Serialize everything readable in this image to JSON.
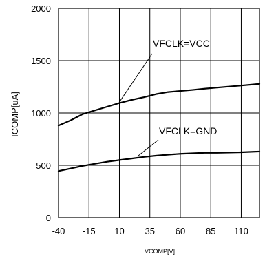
{
  "chart_data": {
    "type": "line",
    "title": "",
    "xlabel": "VCOMP[V]",
    "ylabel": "ICOMP[uA]",
    "xlim": [
      -40,
      125
    ],
    "ylim": [
      0,
      2000
    ],
    "x_ticks": [
      -40,
      -15,
      10,
      35,
      60,
      85,
      110
    ],
    "y_ticks": [
      0,
      500,
      1000,
      1500,
      2000
    ],
    "grid": true,
    "series": [
      {
        "name": "VFCLK=VCC",
        "x": [
          -40,
          -30,
          -20,
          -10,
          0,
          10,
          20,
          30,
          40,
          50,
          60,
          70,
          80,
          90,
          100,
          110,
          120,
          125
        ],
        "y": [
          880,
          930,
          990,
          1025,
          1060,
          1095,
          1125,
          1150,
          1180,
          1200,
          1210,
          1220,
          1232,
          1242,
          1252,
          1262,
          1272,
          1278
        ]
      },
      {
        "name": "VFCLK=GND",
        "x": [
          -40,
          -30,
          -20,
          -10,
          0,
          10,
          20,
          30,
          40,
          50,
          60,
          70,
          80,
          90,
          100,
          110,
          120,
          125
        ],
        "y": [
          445,
          470,
          495,
          515,
          535,
          550,
          565,
          580,
          592,
          602,
          610,
          615,
          620,
          620,
          622,
          625,
          630,
          632
        ]
      }
    ],
    "annotations": [
      {
        "text": "VFCLK=VCC",
        "series": 0
      },
      {
        "text": "VFCLK=GND",
        "series": 1
      }
    ]
  }
}
